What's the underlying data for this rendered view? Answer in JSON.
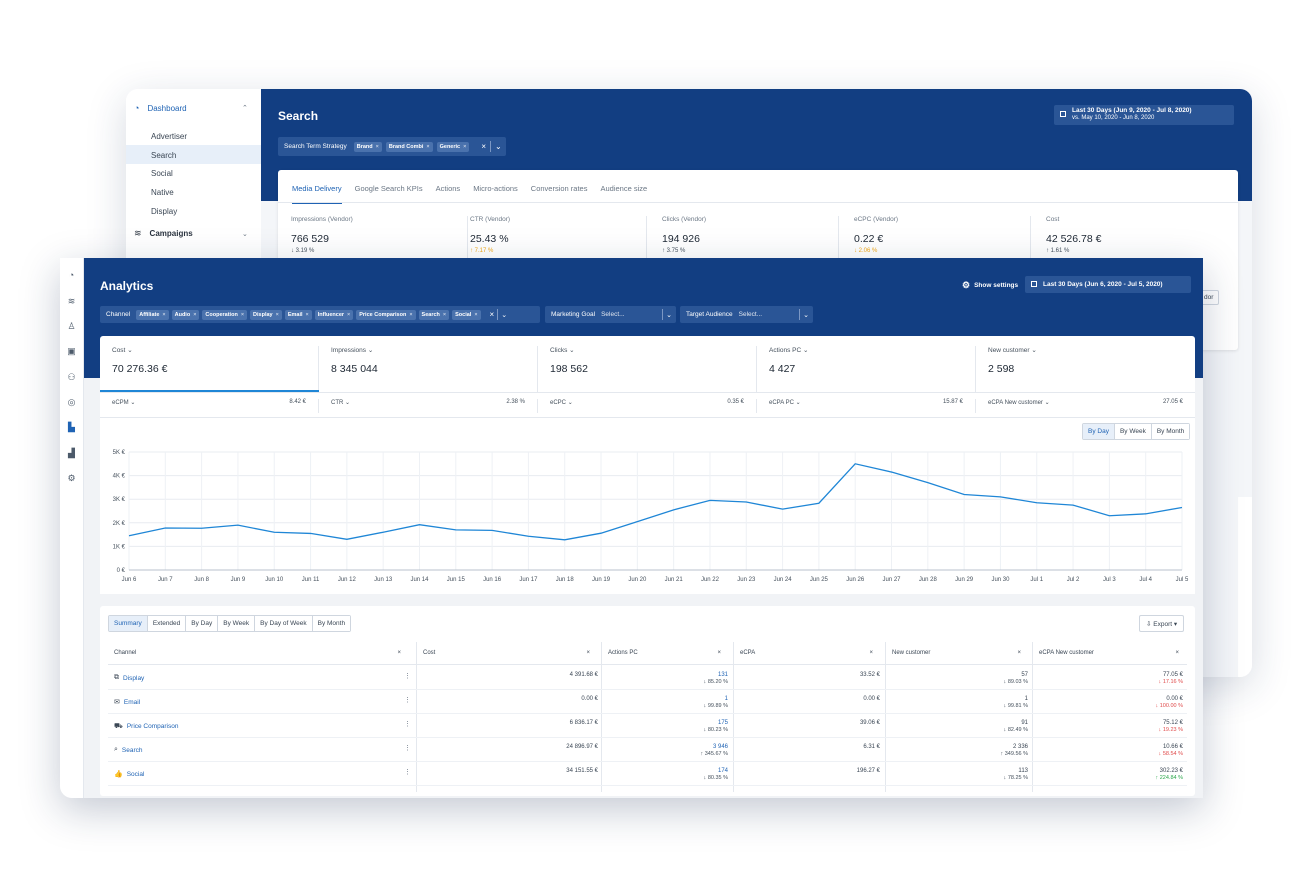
{
  "back": {
    "sidebar": {
      "dashboard": "Dashboard",
      "items": [
        "Advertiser",
        "Search",
        "Social",
        "Native",
        "Display"
      ],
      "campaigns": "Campaigns"
    },
    "title": "Search",
    "date_main": "Last 30 Days (Jun 9, 2020 - Jul 8, 2020)",
    "date_compare": "vs. May 10, 2020 - Jun 8, 2020",
    "filter_label": "Search Term Strategy",
    "filter_chips": [
      "Brand",
      "Brand Combi",
      "Generic"
    ],
    "tabs": [
      "Media Delivery",
      "Google Search KPIs",
      "Actions",
      "Micro-actions",
      "Conversion rates",
      "Audience size"
    ],
    "kpis": [
      {
        "label": "Impressions (Vendor)",
        "value": "766 529",
        "change": "3.19 %",
        "dir": "down"
      },
      {
        "label": "CTR (Vendor)",
        "value": "25.43 %",
        "change": "7.17 %",
        "dir": "up"
      },
      {
        "label": "Clicks (Vendor)",
        "value": "194 926",
        "change": "3.75 %",
        "dir": "up"
      },
      {
        "label": "eCPC (Vendor)",
        "value": "0.22 €",
        "change": "2.06 %",
        "dir": "down"
      },
      {
        "label": "Cost",
        "value": "42 526.78 €",
        "change": "1.61 %",
        "dir": "up"
      }
    ],
    "peek_text": "dor"
  },
  "front": {
    "title": "Analytics",
    "show_settings": "Show settings",
    "date": "Last 30 Days (Jun 6, 2020 - Jul 5, 2020)",
    "channel_label": "Channel",
    "channel_chips": [
      "Affiliate",
      "Audio",
      "Cooperation",
      "Display",
      "Email",
      "Influencer",
      "Price Comparison",
      "Search",
      "Social"
    ],
    "marketing_goal_label": "Marketing Goal",
    "marketing_goal_placeholder": "Select...",
    "target_audience_label": "Target Audience",
    "target_audience_placeholder": "Select...",
    "kpis": [
      {
        "label": "Cost",
        "value": "70 276.36 €"
      },
      {
        "label": "Impressions",
        "value": "8 345 044"
      },
      {
        "label": "Clicks",
        "value": "198 562"
      },
      {
        "label": "Actions PC",
        "value": "4 427"
      },
      {
        "label": "New customer",
        "value": "2 598"
      }
    ],
    "sub_kpis": [
      {
        "label": "eCPM",
        "value": "8.42 €"
      },
      {
        "label": "CTR",
        "value": "2.38 %"
      },
      {
        "label": "eCPC",
        "value": "0.35 €"
      },
      {
        "label": "eCPA PC",
        "value": "15.87 €"
      },
      {
        "label": "eCPA New customer",
        "value": "27.05 €"
      }
    ],
    "granularity": [
      "By Day",
      "By Week",
      "By Month"
    ],
    "table_tabs": [
      "Summary",
      "Extended",
      "By Day",
      "By Week",
      "By Day of Week",
      "By Month"
    ],
    "export_label": "Export",
    "table_headers": [
      "Channel",
      "Cost",
      "Actions PC",
      "eCPA",
      "New customer",
      "eCPA New customer"
    ],
    "rows": [
      {
        "icon": "display-icon",
        "name": "Display",
        "cost": "4 391.68 €",
        "actions": "131",
        "actions_chg": "85.20 %",
        "actions_dir": "down",
        "ecpa": "33.52 €",
        "newc": "57",
        "newc_chg": "89.03 %",
        "newc_dir": "down",
        "ecpa_nc": "77.05 €",
        "ecpa_nc_chg": "17.16 %",
        "ecpa_nc_dir": "down"
      },
      {
        "icon": "email-icon",
        "name": "Email",
        "cost": "0.00 €",
        "actions": "1",
        "actions_chg": "99.89 %",
        "actions_dir": "down",
        "ecpa": "0.00 €",
        "newc": "1",
        "newc_chg": "99.81 %",
        "newc_dir": "down",
        "ecpa_nc": "0.00 €",
        "ecpa_nc_chg": "100.00 %",
        "ecpa_nc_dir": "down"
      },
      {
        "icon": "price-comparison-icon",
        "name": "Price Comparison",
        "cost": "6 836.17 €",
        "actions": "175",
        "actions_chg": "80.23 %",
        "actions_dir": "down",
        "ecpa": "39.06 €",
        "newc": "91",
        "newc_chg": "82.49 %",
        "newc_dir": "down",
        "ecpa_nc": "75.12 €",
        "ecpa_nc_chg": "19.23 %",
        "ecpa_nc_dir": "down"
      },
      {
        "icon": "search-icon",
        "name": "Search",
        "cost": "24 896.97 €",
        "actions": "3 946",
        "actions_chg": "345.67 %",
        "actions_dir": "up",
        "ecpa": "6.31 €",
        "newc": "2 336",
        "newc_chg": "349.56 %",
        "newc_dir": "up",
        "ecpa_nc": "10.66 €",
        "ecpa_nc_chg": "58.54 %",
        "ecpa_nc_dir": "down"
      },
      {
        "icon": "thumbs-up-icon",
        "name": "Social",
        "cost": "34 151.55 €",
        "actions": "174",
        "actions_chg": "80.35 %",
        "actions_dir": "down",
        "ecpa": "196.27 €",
        "newc": "113",
        "newc_chg": "78.25 %",
        "newc_dir": "down",
        "ecpa_nc": "302.23 €",
        "ecpa_nc_chg": "224.84 %",
        "ecpa_nc_dir": "up"
      }
    ]
  },
  "colors": {
    "banner": "#123e82",
    "accent": "#1f86d6",
    "link": "#1f63b4",
    "neg": "#e04b4b",
    "pos": "#2aa74a",
    "warn": "#f0a81a"
  },
  "chart_data": {
    "type": "line",
    "x": [
      "Jun 6",
      "Jun 7",
      "Jun 8",
      "Jun 9",
      "Jun 10",
      "Jun 11",
      "Jun 12",
      "Jun 13",
      "Jun 14",
      "Jun 15",
      "Jun 16",
      "Jun 17",
      "Jun 18",
      "Jun 19",
      "Jun 20",
      "Jun 21",
      "Jun 22",
      "Jun 23",
      "Jun 24",
      "Jun 25",
      "Jun 26",
      "Jun 27",
      "Jun 28",
      "Jun 29",
      "Jun 30",
      "Jul 1",
      "Jul 2",
      "Jul 3",
      "Jul 4",
      "Jul 5"
    ],
    "series": [
      {
        "values": [
          1450,
          1780,
          1770,
          1900,
          1600,
          1550,
          1300,
          1600,
          1920,
          1700,
          1680,
          1430,
          1280,
          1560,
          2050,
          2550,
          2950,
          2880,
          2580,
          2830,
          4500,
          4150,
          3700,
          3200,
          3100,
          2850,
          2750,
          2300,
          2380,
          2650
        ]
      }
    ],
    "yticks": [
      "0 €",
      "1K €",
      "2K €",
      "3K €",
      "4K €",
      "5K €"
    ],
    "ylim": [
      0,
      5000
    ],
    "grid": true
  }
}
